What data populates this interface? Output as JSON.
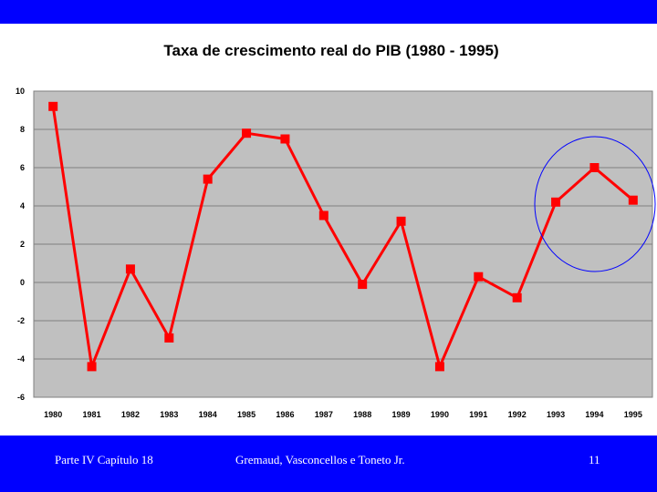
{
  "colors": {
    "bar": "#0000ff",
    "plot_bg": "#c0c0c0",
    "series": "#ff0000",
    "highlight": "#0000ff"
  },
  "footer": {
    "left": "Parte IV Capítulo 18",
    "center": "Gremaud, Vasconcellos e Toneto Jr.",
    "page": "11"
  },
  "chart_data": {
    "type": "line",
    "title": "Taxa de crescimento real do PIB (1980 - 1995)",
    "xlabel": "",
    "ylabel": "",
    "x": [
      "1980",
      "1981",
      "1982",
      "1983",
      "1984",
      "1985",
      "1986",
      "1987",
      "1988",
      "1989",
      "1990",
      "1991",
      "1992",
      "1993",
      "1994",
      "1995"
    ],
    "series": [
      {
        "values": [
          9.2,
          -4.4,
          0.7,
          -2.9,
          5.4,
          7.8,
          7.5,
          3.5,
          -0.1,
          3.2,
          -4.4,
          0.3,
          -0.8,
          4.2,
          6.0,
          4.3
        ]
      }
    ],
    "ylim": [
      -6,
      10
    ],
    "yticks": [
      10,
      8,
      6,
      4,
      2,
      0,
      -2,
      -4,
      -6
    ],
    "grid": true,
    "legend": "none",
    "annotation": "circle around 1993-1995"
  }
}
